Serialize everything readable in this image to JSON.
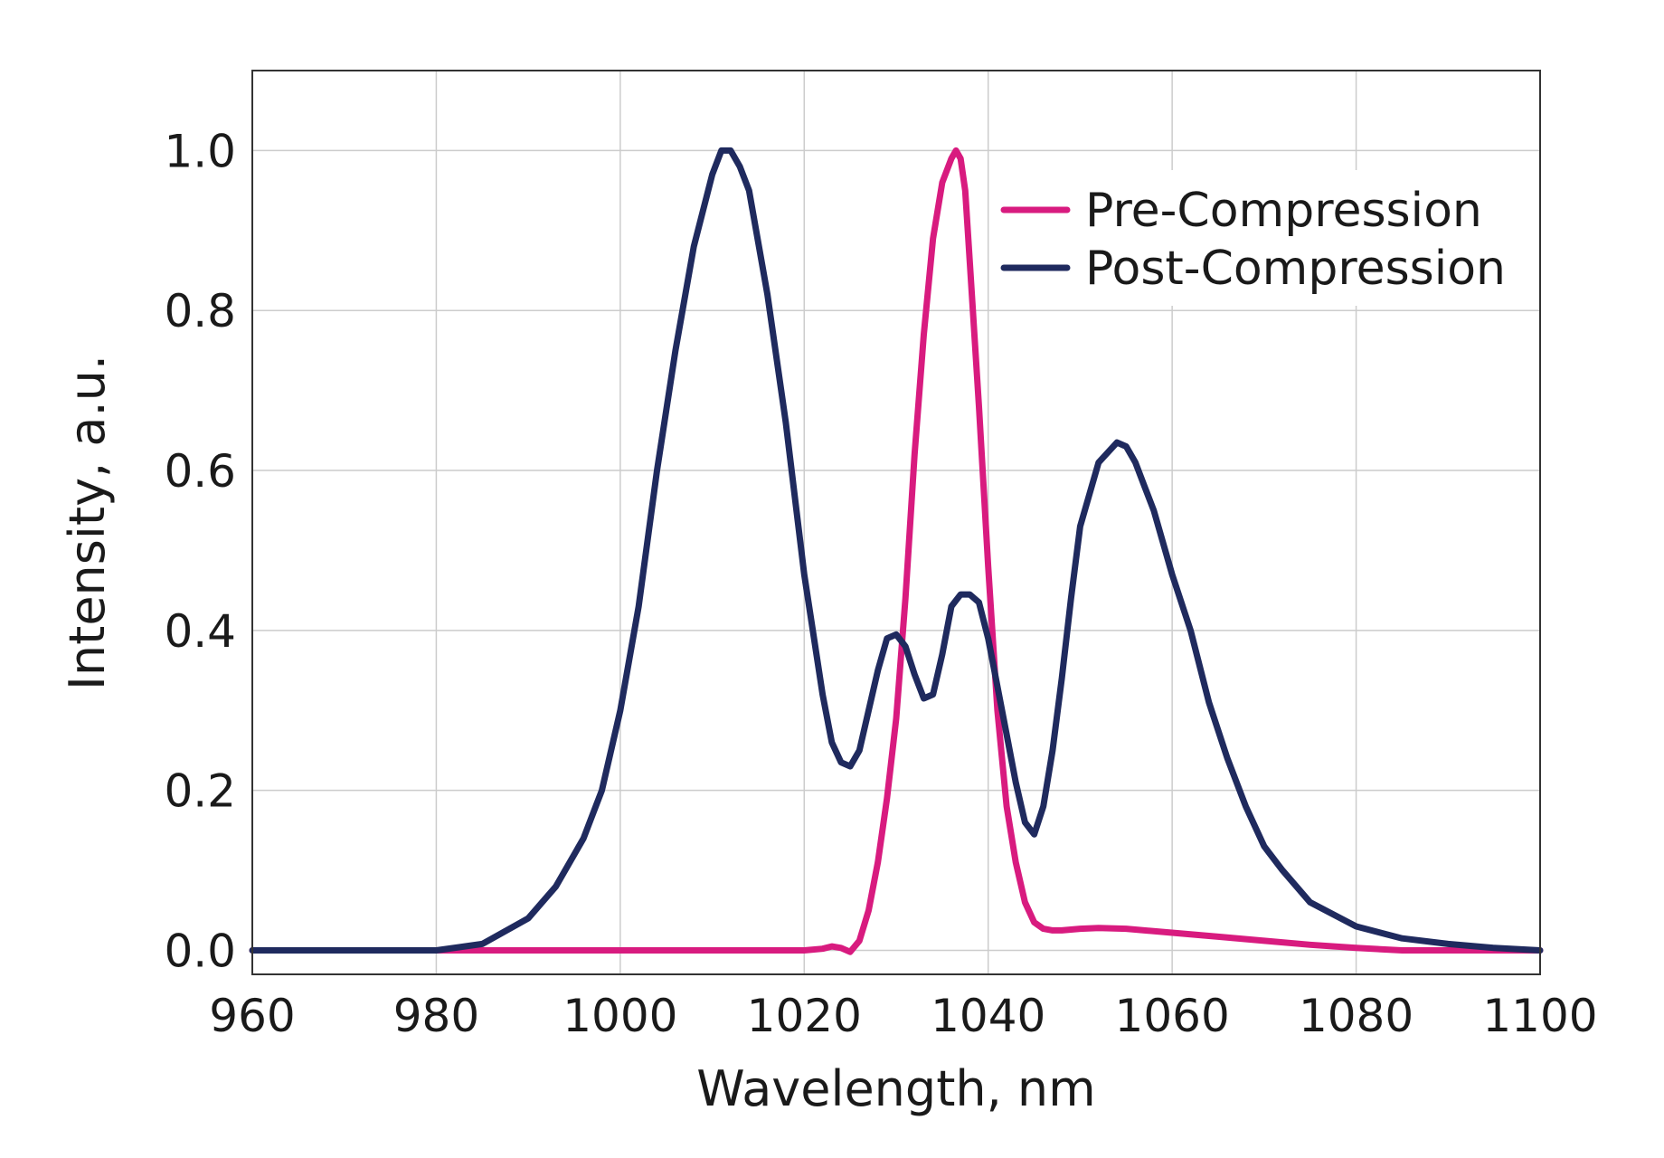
{
  "chart_data": {
    "type": "line",
    "xlabel": "Wavelength, nm",
    "ylabel": "Intensity, a.u.",
    "xlim": [
      960,
      1100
    ],
    "ylim": [
      -0.03,
      1.1
    ],
    "xticks": [
      960,
      980,
      1000,
      1020,
      1040,
      1060,
      1080,
      1100
    ],
    "yticks": [
      0.0,
      0.2,
      0.4,
      0.6,
      0.8,
      1.0
    ],
    "ytick_labels": [
      "0.0",
      "0.2",
      "0.4",
      "0.6",
      "0.8",
      "1.0"
    ],
    "grid": true,
    "legend_position": "top-right",
    "series": [
      {
        "name": "Pre-Compression",
        "color": "#d81b7f",
        "x": [
          960,
          1000,
          1020,
          1022,
          1023,
          1024,
          1025,
          1026,
          1027,
          1028,
          1029,
          1030,
          1031,
          1032,
          1033,
          1034,
          1035,
          1036,
          1036.5,
          1037,
          1037.5,
          1038,
          1039,
          1040,
          1041,
          1042,
          1043,
          1044,
          1045,
          1046,
          1047,
          1048,
          1049,
          1050,
          1052,
          1055,
          1060,
          1065,
          1070,
          1075,
          1080,
          1085,
          1090,
          1100
        ],
        "y": [
          0.0,
          0.0,
          0.0,
          0.002,
          0.005,
          0.003,
          -0.002,
          0.012,
          0.05,
          0.11,
          0.19,
          0.29,
          0.44,
          0.62,
          0.77,
          0.89,
          0.96,
          0.99,
          1.0,
          0.99,
          0.95,
          0.86,
          0.68,
          0.48,
          0.3,
          0.18,
          0.11,
          0.06,
          0.035,
          0.027,
          0.025,
          0.025,
          0.026,
          0.027,
          0.028,
          0.027,
          0.022,
          0.017,
          0.012,
          0.007,
          0.003,
          0.0,
          0.0,
          0.0
        ]
      },
      {
        "name": "Post-Compression",
        "color": "#1f2a5e",
        "x": [
          960,
          980,
          985,
          990,
          993,
          996,
          998,
          1000,
          1002,
          1004,
          1006,
          1008,
          1010,
          1011,
          1012,
          1013,
          1014,
          1016,
          1018,
          1020,
          1022,
          1023,
          1024,
          1025,
          1026,
          1027,
          1028,
          1029,
          1030,
          1031,
          1032,
          1033,
          1034,
          1035,
          1036,
          1037,
          1038,
          1039,
          1040,
          1041,
          1042,
          1043,
          1044,
          1045,
          1046,
          1047,
          1048,
          1049,
          1050,
          1052,
          1054,
          1055,
          1056,
          1057,
          1058,
          1060,
          1062,
          1064,
          1066,
          1068,
          1070,
          1072,
          1075,
          1080,
          1085,
          1090,
          1095,
          1100
        ],
        "y": [
          0.0,
          0.0,
          0.008,
          0.04,
          0.08,
          0.14,
          0.2,
          0.3,
          0.43,
          0.6,
          0.75,
          0.88,
          0.97,
          1.0,
          1.0,
          0.98,
          0.95,
          0.82,
          0.66,
          0.47,
          0.32,
          0.26,
          0.235,
          0.23,
          0.25,
          0.3,
          0.35,
          0.39,
          0.395,
          0.38,
          0.345,
          0.315,
          0.32,
          0.37,
          0.43,
          0.445,
          0.445,
          0.435,
          0.39,
          0.33,
          0.27,
          0.21,
          0.16,
          0.145,
          0.18,
          0.25,
          0.34,
          0.44,
          0.53,
          0.61,
          0.635,
          0.63,
          0.61,
          0.58,
          0.55,
          0.47,
          0.4,
          0.31,
          0.24,
          0.18,
          0.13,
          0.1,
          0.06,
          0.03,
          0.015,
          0.008,
          0.003,
          0.0
        ]
      }
    ]
  }
}
